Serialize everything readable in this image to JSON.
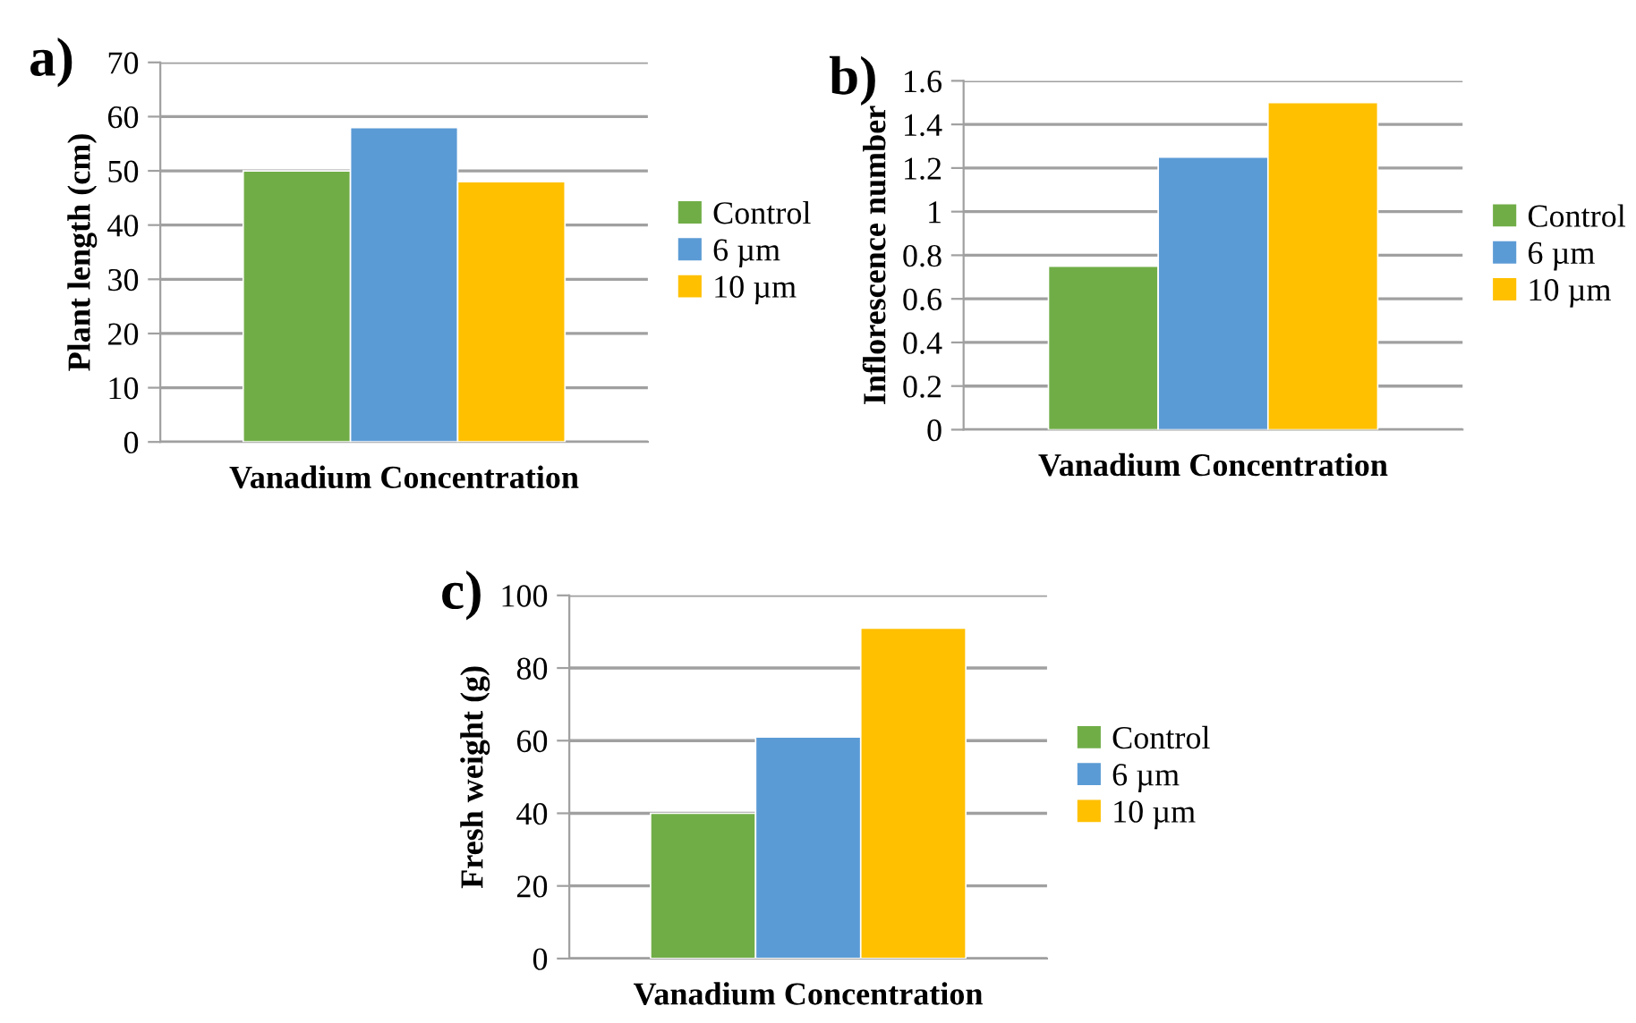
{
  "chart_data": [
    {
      "type": "bar",
      "title": "a)",
      "xlabel": "Vanadium Concentration",
      "ylabel": "Plant length (cm)",
      "categories": [
        null
      ],
      "ylim": [
        0,
        70
      ],
      "yticks": [
        0,
        10,
        20,
        30,
        40,
        50,
        60,
        70
      ],
      "grid": "y",
      "legend": "right",
      "series": [
        {
          "name": "Control",
          "color": "#70ad47",
          "values": [
            50
          ]
        },
        {
          "name": "6 µm",
          "color": "#5b9bd5",
          "values": [
            58
          ]
        },
        {
          "name": "10 µm",
          "color": "#ffc000",
          "values": [
            48
          ]
        }
      ]
    },
    {
      "type": "bar",
      "title": "b)",
      "xlabel": "Vanadium Concentration",
      "ylabel": "Inflorescence number",
      "categories": [
        null
      ],
      "ylim": [
        0,
        1.6
      ],
      "yticks": [
        0,
        0.2,
        0.4,
        0.6,
        0.8,
        1,
        1.2,
        1.4,
        1.6
      ],
      "grid": "y",
      "legend": "right",
      "series": [
        {
          "name": "Control",
          "color": "#70ad47",
          "values": [
            0.75
          ]
        },
        {
          "name": "6 µm",
          "color": "#5b9bd5",
          "values": [
            1.25
          ]
        },
        {
          "name": "10 µm",
          "color": "#ffc000",
          "values": [
            1.5
          ]
        }
      ]
    },
    {
      "type": "bar",
      "title": "c)",
      "xlabel": "Vanadium Concentration",
      "ylabel": "Fresh weight (g)",
      "categories": [
        null
      ],
      "ylim": [
        0,
        100
      ],
      "yticks": [
        0,
        20,
        40,
        60,
        80,
        100
      ],
      "grid": "y",
      "legend": "right",
      "series": [
        {
          "name": "Control",
          "color": "#70ad47",
          "values": [
            40
          ]
        },
        {
          "name": "6 µm",
          "color": "#5b9bd5",
          "values": [
            61
          ]
        },
        {
          "name": "10 µm",
          "color": "#ffc000",
          "values": [
            91
          ]
        }
      ]
    }
  ]
}
